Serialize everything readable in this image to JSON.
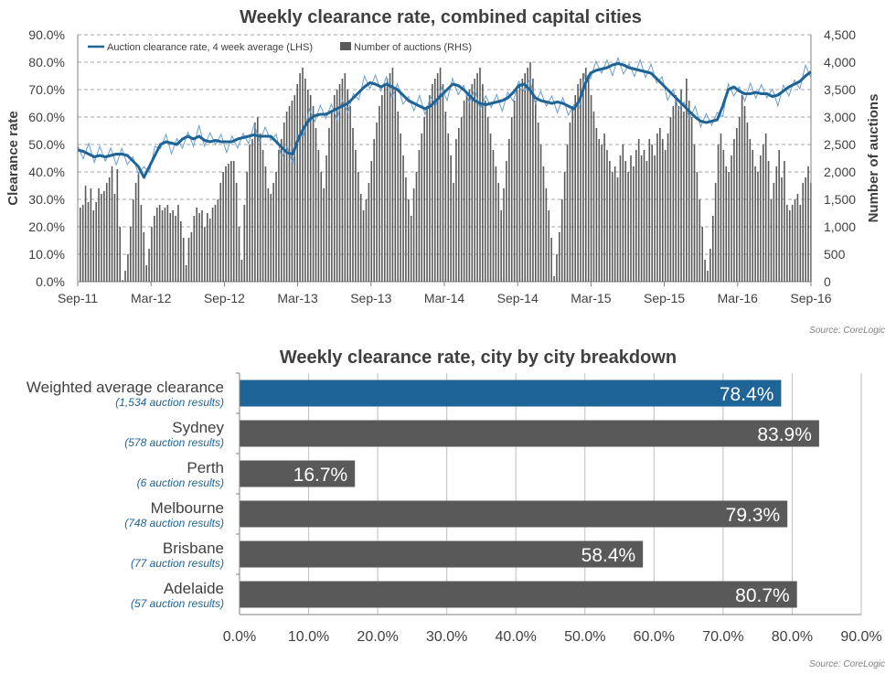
{
  "chart_data": [
    {
      "type": "line+bar",
      "title": "Weekly clearance rate, combined capital cities",
      "ylabel_left": "Clearance rate",
      "ylabel_right": "Number of auctions",
      "source": "Source: CoreLogic",
      "x_ticks": [
        "Sep-11",
        "Mar-12",
        "Sep-12",
        "Mar-13",
        "Sep-13",
        "Mar-14",
        "Sep-14",
        "Mar-15",
        "Sep-15",
        "Mar-16",
        "Sep-16"
      ],
      "y_left_ticks": [
        "0.0%",
        "10.0%",
        "20.0%",
        "30.0%",
        "40.0%",
        "50.0%",
        "60.0%",
        "70.0%",
        "80.0%",
        "90.0%"
      ],
      "y_right_ticks": [
        "0",
        "500",
        "1,000",
        "1,500",
        "2,000",
        "2,500",
        "3,000",
        "3,500",
        "4,000",
        "4,500"
      ],
      "ylim_left": [
        0,
        90
      ],
      "ylim_right": [
        0,
        4500
      ],
      "legend": [
        "Auction clearance rate, 4 week average (LHS)",
        "Number of auctions (RHS)"
      ],
      "legend_position": "top-left",
      "grid": true,
      "colors": {
        "line": "#1e6496",
        "weekly_line": "#6a9ed0",
        "bars": "#595959"
      },
      "series": [
        {
          "name": "Auction clearance rate, 4 week average (LHS)",
          "points": [
            [
              0,
              48
            ],
            [
              2,
              47.5
            ],
            [
              4,
              46.5
            ],
            [
              6,
              45.5
            ],
            [
              8,
              46
            ],
            [
              10,
              45.5
            ],
            [
              12,
              46
            ],
            [
              14,
              46.5
            ],
            [
              16,
              46.5
            ],
            [
              18,
              46
            ],
            [
              20,
              44
            ],
            [
              22,
              42
            ],
            [
              24,
              38
            ],
            [
              26,
              42
            ],
            [
              28,
              46
            ],
            [
              30,
              50
            ],
            [
              32,
              51
            ],
            [
              34,
              50.5
            ],
            [
              36,
              50
            ],
            [
              38,
              52
            ],
            [
              40,
              53
            ],
            [
              42,
              52
            ],
            [
              44,
              53
            ],
            [
              46,
              51.5
            ],
            [
              48,
              51
            ],
            [
              50,
              51.5
            ],
            [
              52,
              51
            ],
            [
              54,
              51
            ],
            [
              56,
              51
            ],
            [
              58,
              52
            ],
            [
              60,
              52.5
            ],
            [
              62,
              53
            ],
            [
              64,
              53.5
            ],
            [
              66,
              53
            ],
            [
              68,
              53
            ],
            [
              70,
              53
            ],
            [
              72,
              51
            ],
            [
              74,
              49
            ],
            [
              76,
              47
            ],
            [
              78,
              46.5
            ],
            [
              80,
              52
            ],
            [
              82,
              56
            ],
            [
              84,
              59
            ],
            [
              86,
              60.5
            ],
            [
              88,
              61
            ],
            [
              90,
              61
            ],
            [
              92,
              62
            ],
            [
              94,
              63
            ],
            [
              96,
              64
            ],
            [
              98,
              65
            ],
            [
              100,
              67
            ],
            [
              102,
              69
            ],
            [
              104,
              71
            ],
            [
              106,
              72.5
            ],
            [
              108,
              72
            ],
            [
              110,
              71
            ],
            [
              112,
              72
            ],
            [
              114,
              71
            ],
            [
              116,
              70
            ],
            [
              118,
              68
            ],
            [
              120,
              66
            ],
            [
              122,
              65
            ],
            [
              124,
              64
            ],
            [
              126,
              63
            ],
            [
              128,
              64
            ],
            [
              130,
              66
            ],
            [
              132,
              68
            ],
            [
              134,
              70
            ],
            [
              136,
              72
            ],
            [
              138,
              71.5
            ],
            [
              140,
              70
            ],
            [
              142,
              68
            ],
            [
              144,
              66
            ],
            [
              146,
              65
            ],
            [
              148,
              64.5
            ],
            [
              150,
              65
            ],
            [
              152,
              65.5
            ],
            [
              154,
              66
            ],
            [
              156,
              67
            ],
            [
              158,
              69
            ],
            [
              160,
              71.5
            ],
            [
              162,
              72
            ],
            [
              164,
              70
            ],
            [
              166,
              67
            ],
            [
              168,
              66
            ],
            [
              170,
              65.5
            ],
            [
              172,
              65
            ],
            [
              174,
              65.5
            ],
            [
              176,
              65
            ],
            [
              178,
              64
            ],
            [
              180,
              63
            ],
            [
              182,
              66
            ],
            [
              184,
              72
            ],
            [
              186,
              76
            ],
            [
              188,
              77
            ],
            [
              190,
              77.5
            ],
            [
              192,
              78
            ],
            [
              194,
              79
            ],
            [
              196,
              79.5
            ],
            [
              198,
              79
            ],
            [
              200,
              78
            ],
            [
              202,
              77.5
            ],
            [
              204,
              77
            ],
            [
              206,
              76.5
            ],
            [
              208,
              76
            ],
            [
              210,
              74
            ],
            [
              212,
              72
            ],
            [
              214,
              70
            ],
            [
              216,
              68
            ],
            [
              218,
              66
            ],
            [
              220,
              64
            ],
            [
              222,
              62
            ],
            [
              224,
              60
            ],
            [
              226,
              58.5
            ],
            [
              228,
              58
            ],
            [
              230,
              58.5
            ],
            [
              232,
              59
            ],
            [
              234,
              64
            ],
            [
              236,
              70
            ],
            [
              238,
              71
            ],
            [
              240,
              69.5
            ],
            [
              242,
              68.5
            ],
            [
              244,
              68.5
            ],
            [
              246,
              69
            ],
            [
              248,
              68.5
            ],
            [
              250,
              68.5
            ],
            [
              252,
              67.5
            ],
            [
              254,
              68
            ],
            [
              256,
              69.5
            ],
            [
              258,
              71
            ],
            [
              260,
              72
            ],
            [
              262,
              73
            ],
            [
              264,
              75
            ],
            [
              266,
              76.5
            ]
          ]
        },
        {
          "name": "Number of auctions (RHS)",
          "values": [
            1350,
            1400,
            1750,
            1450,
            1700,
            1300,
            1450,
            1700,
            1600,
            1650,
            1800,
            1900,
            2100,
            1600,
            2050,
            1000,
            30,
            200,
            500,
            1000,
            1500,
            1800,
            2000,
            1400,
            900,
            300,
            600,
            1000,
            1200,
            1350,
            1400,
            1300,
            1350,
            1400,
            1250,
            1300,
            1200,
            1400,
            1100,
            800,
            300,
            800,
            900,
            1200,
            1350,
            1250,
            1300,
            1000,
            1250,
            1150,
            1350,
            1400,
            1500,
            1800,
            2000,
            2100,
            2150,
            2200,
            2200,
            1800,
            1000,
            400,
            1400,
            2000,
            2500,
            2600,
            2900,
            3000,
            2700,
            2400,
            2100,
            1700,
            1600,
            1800,
            2000,
            2400,
            2600,
            2900,
            3100,
            3200,
            3300,
            3400,
            3600,
            3800,
            3900,
            3700,
            3500,
            3400,
            3200,
            2800,
            2400,
            2000,
            1700,
            2300,
            2800,
            3100,
            3400,
            3500,
            3600,
            3700,
            3800,
            3500,
            3200,
            2800,
            2400,
            2000,
            1600,
            1300,
            1500,
            1800,
            2200,
            2600,
            2900,
            3200,
            3400,
            3600,
            3700,
            3800,
            3900,
            3500,
            3100,
            2700,
            2300,
            1900,
            1500,
            1200,
            1700,
            2000,
            2400,
            2700,
            3000,
            3200,
            3400,
            3600,
            3700,
            3800,
            3900,
            3600,
            3100,
            2700,
            2300,
            1800,
            2600,
            2800,
            3000,
            3300,
            3400,
            3500,
            3600,
            3700,
            3800,
            3900,
            3600,
            3300,
            3000,
            2700,
            2400,
            2100,
            1800,
            1300,
            1700,
            2200,
            2600,
            3000,
            3300,
            3500,
            3600,
            3700,
            3800,
            3900,
            4000,
            3700,
            3300,
            2900,
            2500,
            2100,
            1700,
            1300,
            800,
            100,
            500,
            900,
            1500,
            2000,
            2500,
            2900,
            3200,
            3400,
            3600,
            3700,
            3800,
            3900,
            3700,
            3400,
            3100,
            2800,
            2600,
            2500,
            2700,
            2400,
            2200,
            2000,
            2100,
            1900,
            2300,
            2500,
            2200,
            2000,
            2300,
            2100,
            2400,
            2600,
            2300,
            2400,
            2200,
            2600,
            2500,
            2300,
            2700,
            2800,
            2600,
            2400,
            2700,
            3000,
            3200,
            3400,
            3200,
            3500,
            3100,
            3700,
            3300,
            3000,
            2500,
            2000,
            1500,
            1000,
            400,
            200,
            600,
            1200,
            1800,
            2500,
            2700,
            2400,
            2100,
            2000,
            2300,
            2600,
            2800,
            3000,
            3400,
            3200,
            2900,
            2600,
            2400,
            2100,
            2000,
            2300,
            2500,
            2700,
            2200,
            1500,
            1800,
            2100,
            2400,
            1900,
            2200,
            1400,
            1300,
            1400,
            1500,
            1600,
            1400,
            1800,
            1900,
            2100,
            1800
          ]
        }
      ]
    },
    {
      "type": "bar",
      "orientation": "horizontal",
      "title": "Weekly clearance rate, city by city breakdown",
      "source": "Source: CoreLogic",
      "xlim": [
        0,
        90
      ],
      "x_ticks": [
        "0.0%",
        "10.0%",
        "20.0%",
        "30.0%",
        "40.0%",
        "50.0%",
        "60.0%",
        "70.0%",
        "80.0%",
        "90.0%"
      ],
      "grid": true,
      "colors": {
        "highlight": "#1e6496",
        "bars": "#595959",
        "sub_text": "#1e6496"
      },
      "categories": [
        {
          "name": "Weighted average clearance",
          "sub": "(1,534 auction results)",
          "value": 78.4,
          "label": "78.4%",
          "highlight": true
        },
        {
          "name": "Sydney",
          "sub": "(578 auction results)",
          "value": 83.9,
          "label": "83.9%",
          "highlight": false
        },
        {
          "name": "Perth",
          "sub": "(6 auction results)",
          "value": 16.7,
          "label": "16.7%",
          "highlight": false
        },
        {
          "name": "Melbourne",
          "sub": "(748 auction results)",
          "value": 79.3,
          "label": "79.3%",
          "highlight": false
        },
        {
          "name": "Brisbane",
          "sub": "(77 auction results)",
          "value": 58.4,
          "label": "58.4%",
          "highlight": false
        },
        {
          "name": "Adelaide",
          "sub": "(57 auction results)",
          "value": 80.7,
          "label": "80.7%",
          "highlight": false
        }
      ]
    }
  ]
}
